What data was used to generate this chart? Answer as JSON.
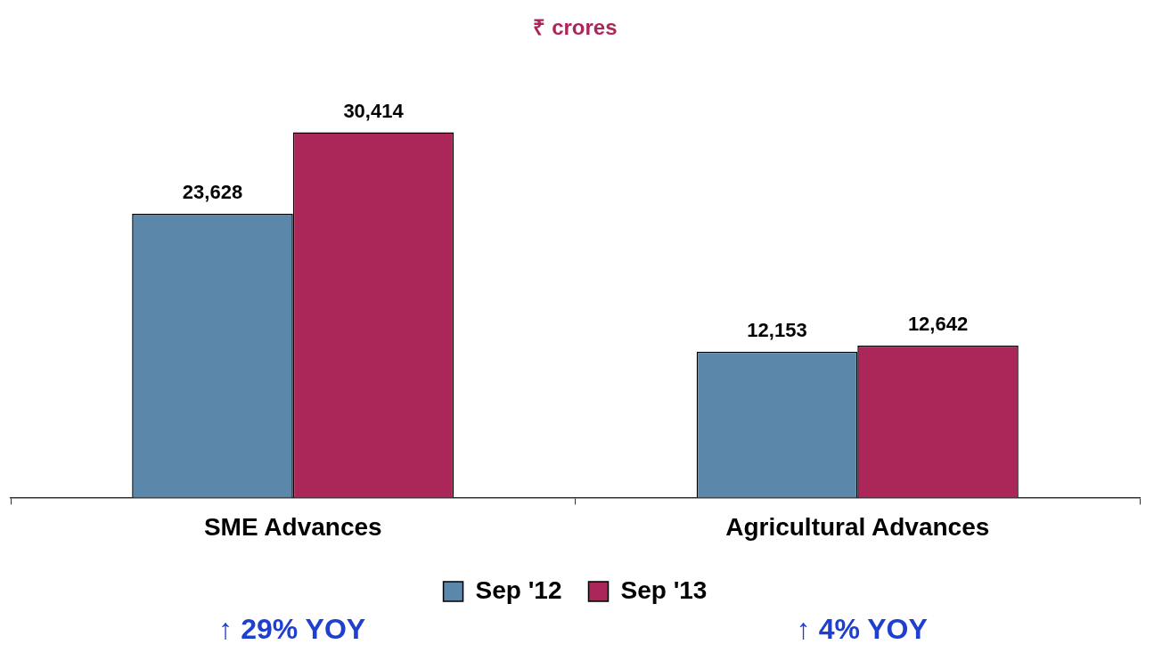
{
  "chart_data": {
    "type": "bar",
    "title": "₹ crores",
    "categories": [
      "SME Advances",
      "Agricultural Advances"
    ],
    "series": [
      {
        "name": "Sep '12",
        "color": "#5b87ab",
        "values": [
          23628,
          12153
        ],
        "value_labels": [
          "23,628",
          "12,153"
        ]
      },
      {
        "name": "Sep '13",
        "color": "#ab275a",
        "values": [
          30414,
          12642
        ],
        "value_labels": [
          "30,414",
          "12,642"
        ]
      }
    ],
    "legend": "bottom",
    "grid": false,
    "tick_labels": "x",
    "annotations": [
      "↑ 29% YOY",
      "↑ 4% YOY"
    ]
  }
}
